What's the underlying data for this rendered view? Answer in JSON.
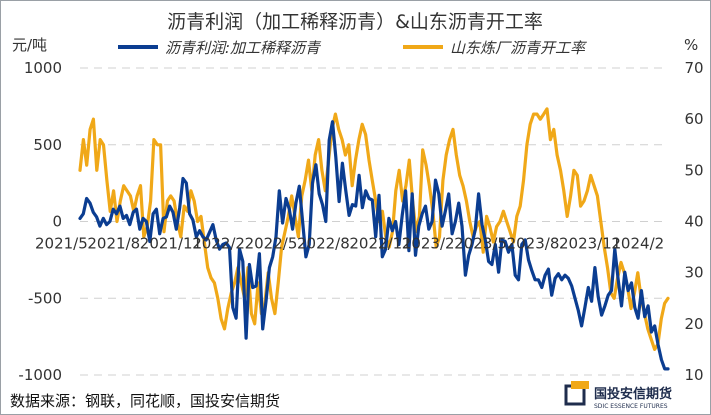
{
  "chart_data": {
    "type": "line",
    "title": "沥青利润（加工稀释沥青）&山东沥青开工率",
    "y_left_unit": "元/吨",
    "y_right_unit": "%",
    "y_left_lim": [
      -1000,
      1000
    ],
    "y_right_lim": [
      10,
      70
    ],
    "y_left_ticks": [
      "1000",
      "500",
      "0",
      "-500",
      "-1000"
    ],
    "y_right_ticks": [
      "70",
      "60",
      "50",
      "40",
      "30",
      "20",
      "10"
    ],
    "x_tick_labels": [
      "2021/5",
      "2021/8",
      "2021/11",
      "2022/2",
      "2022/5",
      "2022/8",
      "2022/11",
      "2023/2",
      "2023/5",
      "2023/8",
      "2023/11",
      "2024/2"
    ],
    "grid": "horizontal dashed",
    "legend_position": "top",
    "series": [
      {
        "name": "沥青利润:加工稀释沥青",
        "axis": "left",
        "color": "#0b3d91",
        "values": [
          20,
          50,
          150,
          120,
          60,
          30,
          -30,
          20,
          -20,
          0,
          80,
          50,
          100,
          20,
          40,
          -20,
          60,
          80,
          -50,
          20,
          0,
          -130,
          50,
          80,
          -80,
          20,
          30,
          100,
          60,
          -50,
          90,
          280,
          250,
          50,
          10,
          -100,
          -60,
          -100,
          -120,
          -70,
          -20,
          -120,
          -180,
          -150,
          -140,
          -170,
          -560,
          -630,
          -180,
          -260,
          -760,
          -280,
          -430,
          -420,
          -210,
          -700,
          -520,
          -300,
          -230,
          -100,
          200,
          -10,
          150,
          80,
          -50,
          120,
          230,
          0,
          -230,
          -150,
          250,
          370,
          180,
          110,
          0,
          530,
          650,
          420,
          130,
          380,
          200,
          40,
          110,
          100,
          300,
          90,
          200,
          150,
          140,
          -100,
          170,
          -230,
          -180,
          20,
          -60,
          0,
          -150,
          40,
          200,
          -190,
          180,
          -220,
          -30,
          50,
          100,
          -50,
          0,
          270,
          180,
          -30,
          70,
          180,
          -80,
          0,
          120,
          -30,
          -350,
          -220,
          -150,
          -50,
          180,
          -20,
          -120,
          -260,
          -280,
          -150,
          -330,
          -120,
          -130,
          -200,
          -150,
          -350,
          -380,
          -150,
          -120,
          -250,
          -320,
          -380,
          -380,
          -430,
          -350,
          -310,
          -480,
          -370,
          -340,
          -380,
          -350,
          -370,
          -420,
          -500,
          -580,
          -680,
          -560,
          -430,
          -520,
          -300,
          -490,
          -610,
          -550,
          -480,
          -450,
          -180,
          -380,
          -550,
          -330,
          -450,
          -400,
          -560,
          -630,
          -450,
          -620,
          -550,
          -720,
          -680,
          -800,
          -900,
          -960,
          -960
        ]
      },
      {
        "name": "山东炼厂沥青开工率",
        "axis": "right",
        "color": "#f0a818",
        "values": [
          50,
          56,
          51,
          58,
          60,
          50,
          56,
          55,
          48,
          42,
          46,
          40,
          44,
          47,
          46,
          45,
          42,
          45,
          47,
          37,
          39,
          44,
          56,
          55,
          55,
          38,
          44,
          45,
          44,
          40,
          37,
          43,
          42,
          46,
          44,
          40,
          41,
          36,
          31,
          29,
          28,
          25,
          21,
          19,
          23,
          26,
          28,
          31,
          28,
          25,
          31,
          22,
          20,
          28,
          22,
          24,
          30,
          25,
          22,
          28,
          35,
          38,
          41,
          45,
          41,
          37,
          45,
          48,
          52,
          46,
          53,
          56,
          50,
          46,
          52,
          58,
          61,
          58,
          56,
          53,
          55,
          47,
          52,
          56,
          59,
          57,
          52,
          48,
          44,
          40,
          42,
          37,
          35,
          38,
          46,
          50,
          44,
          47,
          52,
          44,
          38,
          41,
          54,
          51,
          47,
          42,
          35,
          37,
          48,
          53,
          56,
          58,
          53,
          49,
          47,
          44,
          40,
          37,
          39,
          40,
          34,
          41,
          39,
          36,
          39,
          40,
          42,
          40,
          38,
          36,
          41,
          43,
          48,
          55,
          59,
          61,
          61,
          60,
          61,
          62,
          56,
          58,
          53,
          50,
          46,
          41,
          45,
          50,
          49,
          43,
          44,
          46,
          49,
          47,
          45,
          40,
          35,
          31,
          26,
          25,
          29,
          32,
          30,
          27,
          23,
          26,
          30,
          25,
          22,
          19,
          17,
          15,
          16,
          21,
          24,
          25
        ]
      }
    ]
  },
  "source_text": "数据来源：钢联，同花顺，国投安信期货",
  "logo": {
    "name_cn": "国投安信期货",
    "name_en": "SDIC ESSENCE FUTURES"
  }
}
